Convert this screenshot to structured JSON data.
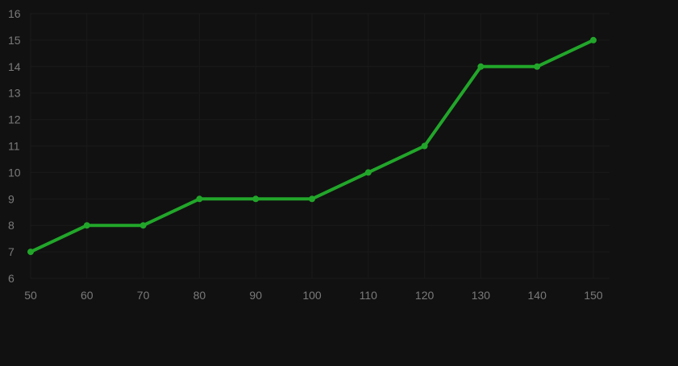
{
  "chart_data": {
    "type": "line",
    "title": "",
    "xlabel": "",
    "ylabel": "",
    "x": [
      50,
      60,
      70,
      80,
      90,
      100,
      110,
      120,
      130,
      140,
      150
    ],
    "series": [
      {
        "values": [
          7,
          8,
          8,
          9,
          9,
          9,
          10,
          11,
          14,
          14,
          15
        ],
        "color": "#22a62a"
      }
    ],
    "xlim": [
      50,
      150
    ],
    "ylim": [
      6,
      16
    ],
    "x_ticks": [
      "50",
      "60",
      "70",
      "80",
      "90",
      "100",
      "110",
      "120",
      "130",
      "140",
      "150"
    ],
    "y_ticks": [
      "6",
      "7",
      "8",
      "9",
      "10",
      "11",
      "12",
      "13",
      "14",
      "15",
      "16"
    ],
    "grid": true,
    "legend": "none",
    "background_color": "#111111",
    "tick_label_color": "#7a7a7a",
    "grid_color": "#1a1a1a"
  }
}
